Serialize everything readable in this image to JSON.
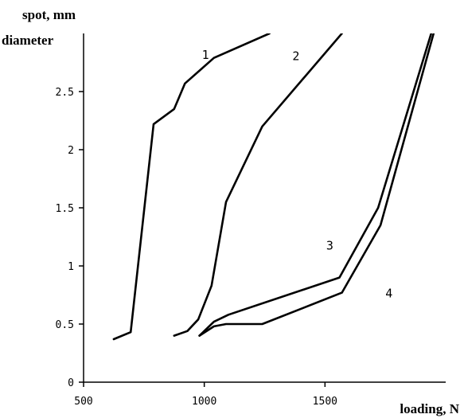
{
  "chart_data": {
    "type": "line",
    "xlabel": "loading, N",
    "ylabel_line1": "spot,  mm",
    "ylabel_line2": "diameter",
    "xlim": [
      500,
      2000
    ],
    "ylim": [
      0,
      3
    ],
    "x_ticks": [
      500,
      1000,
      1500
    ],
    "y_ticks": [
      0,
      0.5,
      1,
      1.5,
      2,
      2.5
    ],
    "x_tick_labels": [
      "500",
      "1000",
      "1500"
    ],
    "y_tick_labels": [
      "0",
      "0.5",
      "1",
      "1.5",
      "2",
      "2.5"
    ],
    "grid": false,
    "series": [
      {
        "name": "1",
        "points": [
          [
            625,
            0.37
          ],
          [
            695,
            0.43
          ],
          [
            790,
            2.22
          ],
          [
            875,
            2.35
          ],
          [
            920,
            2.57
          ],
          [
            1040,
            2.79
          ],
          [
            1270,
            3.0
          ]
        ]
      },
      {
        "name": "2",
        "points": [
          [
            875,
            0.4
          ],
          [
            930,
            0.44
          ],
          [
            975,
            0.54
          ],
          [
            1030,
            0.83
          ],
          [
            1090,
            1.55
          ],
          [
            1240,
            2.2
          ],
          [
            1570,
            3.0
          ]
        ]
      },
      {
        "name": "3",
        "points": [
          [
            980,
            0.4
          ],
          [
            1040,
            0.52
          ],
          [
            1100,
            0.58
          ],
          [
            1560,
            0.9
          ],
          [
            1720,
            1.5
          ],
          [
            1940,
            3.0
          ]
        ]
      },
      {
        "name": "4",
        "points": [
          [
            980,
            0.4
          ],
          [
            1040,
            0.48
          ],
          [
            1090,
            0.5
          ],
          [
            1240,
            0.5
          ],
          [
            1570,
            0.77
          ],
          [
            1730,
            1.35
          ],
          [
            1950,
            3.0
          ]
        ]
      }
    ],
    "series_label_positions": [
      {
        "name": "1",
        "x": 1005,
        "y": 2.78
      },
      {
        "name": "2",
        "x": 1380,
        "y": 2.77
      },
      {
        "name": "3",
        "x": 1520,
        "y": 1.14
      },
      {
        "name": "4",
        "x": 1765,
        "y": 0.73
      }
    ]
  }
}
